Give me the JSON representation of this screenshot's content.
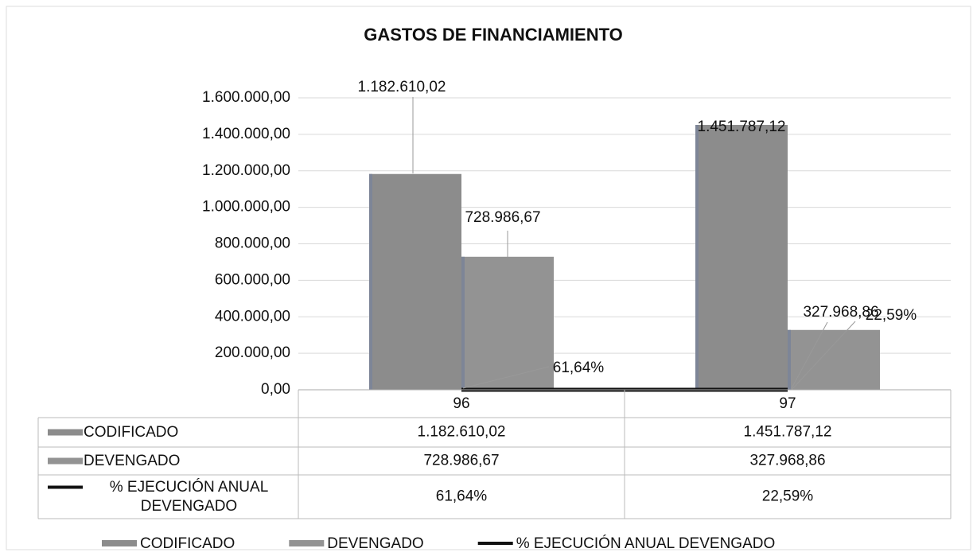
{
  "chart_data": {
    "type": "bar",
    "title": "GASTOS DE FINANCIAMIENTO",
    "categories": [
      "96",
      "97"
    ],
    "series": [
      {
        "name": "CODIFICADO",
        "color": "#8c8c8c",
        "values": [
          1182610.02,
          1451787.12
        ],
        "value_labels": [
          "1.182.610,02",
          "1.451.787,12"
        ]
      },
      {
        "name": "DEVENGADO",
        "color": "#939393",
        "values": [
          728986.67,
          327968.86
        ],
        "value_labels": [
          "728.986,67",
          "327.968,86"
        ]
      },
      {
        "name": "% EJECUCIÓN ANUAL DEVENGADO",
        "type": "line",
        "color": "#111111",
        "values": [
          61.64,
          22.59
        ],
        "value_labels": [
          "61,64%",
          "22,59%"
        ]
      }
    ],
    "ylim": [
      0,
      1600000
    ],
    "yticks": [
      {
        "value": 0,
        "label": "0,00"
      },
      {
        "value": 200000,
        "label": "200.000,00"
      },
      {
        "value": 400000,
        "label": "400.000,00"
      },
      {
        "value": 600000,
        "label": "600.000,00"
      },
      {
        "value": 800000,
        "label": "800.000,00"
      },
      {
        "value": 1000000,
        "label": "1.000.000,00"
      },
      {
        "value": 1200000,
        "label": "1.200.000,00"
      },
      {
        "value": 1400000,
        "label": "1.400.000,00"
      },
      {
        "value": 1600000,
        "label": "1.600.000,00"
      }
    ],
    "grid": true,
    "legend": "bottom",
    "data_table": true
  }
}
